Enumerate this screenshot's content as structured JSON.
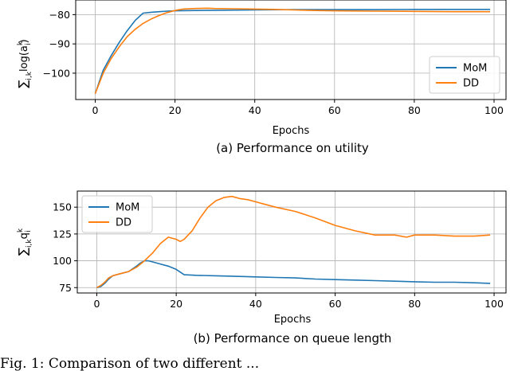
{
  "figure_caption_fragment": "Fig. 1: Comparison of two different ...",
  "chart_data": [
    {
      "type": "line",
      "caption": "(a) Performance on utility",
      "xlabel": "Epochs",
      "ylabel_main": "∑",
      "ylabel_sub": "i,k",
      "ylabel_expr": "log(a",
      "ylabel_expr_sup": "k",
      "ylabel_expr_sub": "i",
      "ylabel_expr_end": ")",
      "xlim": [
        -4.9,
        103
      ],
      "ylim": [
        -109,
        -75
      ],
      "xticks": [
        0,
        20,
        40,
        60,
        80,
        100
      ],
      "yticks": [
        -100,
        -90,
        -80
      ],
      "grid": true,
      "legend_position": "lower-right",
      "series": [
        {
          "name": "MoM",
          "color": "#1f77b4",
          "x": [
            0,
            2,
            4,
            6,
            8,
            10,
            12,
            14,
            16,
            18,
            20,
            25,
            30,
            40,
            50,
            60,
            70,
            80,
            90,
            99
          ],
          "y": [
            -107,
            -99,
            -94,
            -89.5,
            -85.5,
            -82,
            -79.5,
            -79.2,
            -79,
            -78.8,
            -78.7,
            -78.6,
            -78.5,
            -78.4,
            -78.3,
            -78.3,
            -78.3,
            -78.2,
            -78.2,
            -78.2
          ]
        },
        {
          "name": "DD",
          "color": "#ff7f0e",
          "x": [
            0,
            2,
            4,
            6,
            8,
            10,
            12,
            14,
            16,
            18,
            20,
            22,
            25,
            28,
            30,
            35,
            40,
            45,
            50,
            55,
            60,
            70,
            80,
            90,
            99
          ],
          "y": [
            -107,
            -100,
            -95,
            -91,
            -87.5,
            -85,
            -83,
            -81.5,
            -80.3,
            -79.3,
            -78.6,
            -78.1,
            -77.9,
            -77.8,
            -77.9,
            -78,
            -78.1,
            -78.2,
            -78.4,
            -78.6,
            -78.7,
            -78.8,
            -78.9,
            -79,
            -79
          ]
        }
      ]
    },
    {
      "type": "line",
      "caption": "(b) Performance on queue length",
      "xlabel": "Epochs",
      "ylabel_main": "∑",
      "ylabel_sub": "i,k",
      "ylabel_expr": "q",
      "ylabel_expr_sup": "k",
      "ylabel_expr_sub": "i",
      "ylabel_expr_end": "",
      "xlim": [
        -4.9,
        103
      ],
      "ylim": [
        70,
        165
      ],
      "xticks": [
        0,
        20,
        40,
        60,
        80,
        100
      ],
      "yticks": [
        75,
        100,
        125,
        150
      ],
      "grid": true,
      "legend_position": "upper-left",
      "series": [
        {
          "name": "MoM",
          "color": "#1f77b4",
          "x": [
            0,
            1,
            2,
            3,
            4,
            6,
            8,
            10,
            11,
            12,
            13,
            14,
            16,
            18,
            20,
            22,
            25,
            30,
            35,
            40,
            45,
            50,
            55,
            60,
            65,
            70,
            75,
            80,
            85,
            90,
            95,
            99
          ],
          "y": [
            75,
            76,
            79,
            83,
            86,
            88,
            90,
            95,
            98,
            100,
            100,
            99,
            97,
            95,
            92,
            87,
            86.5,
            86,
            85.5,
            85,
            84.5,
            84,
            83,
            82.5,
            82,
            81.5,
            81,
            80.5,
            80,
            80,
            79.5,
            79
          ]
        },
        {
          "name": "DD",
          "color": "#ff7f0e",
          "x": [
            0,
            1,
            2,
            3,
            4,
            6,
            8,
            10,
            12,
            14,
            16,
            18,
            20,
            21,
            22,
            24,
            26,
            28,
            30,
            32,
            34,
            36,
            38,
            40,
            42,
            45,
            50,
            55,
            60,
            65,
            70,
            75,
            78,
            80,
            85,
            90,
            95,
            99
          ],
          "y": [
            75,
            77,
            80,
            84,
            86,
            88,
            90,
            94,
            100,
            107,
            116,
            122,
            120,
            118,
            120,
            128,
            140,
            150,
            156,
            159,
            160,
            158,
            157,
            155,
            153,
            150,
            146,
            140,
            133,
            128,
            124,
            124,
            122,
            124,
            124,
            123,
            123,
            124
          ]
        }
      ]
    }
  ]
}
